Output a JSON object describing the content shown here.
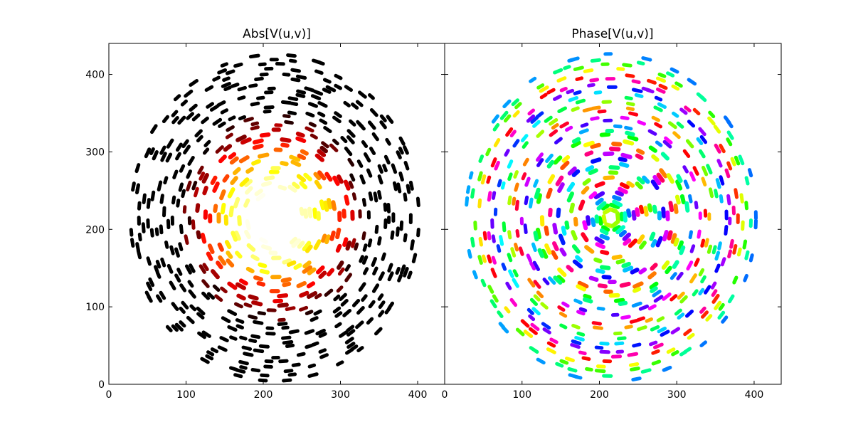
{
  "chart_data": [
    {
      "type": "heatmap",
      "title": "Abs[V(u,v)]",
      "xlabel": "",
      "ylabel": "",
      "xlim": [
        0,
        435
      ],
      "ylim": [
        0,
        440
      ],
      "xticks": [
        0,
        100,
        200,
        300,
        400
      ],
      "yticks": [
        0,
        100,
        200,
        300,
        400
      ],
      "xtick_labels": [
        "0",
        "100",
        "200",
        "300",
        "400"
      ],
      "ytick_labels": [
        "0",
        "100",
        "200",
        "300",
        "400"
      ],
      "colormap": "hot",
      "center": [
        215,
        215
      ],
      "description_ranges": {
        "outer_radius": 200
      },
      "grid": false
    },
    {
      "type": "heatmap",
      "title": "Phase[V(u,v)]",
      "xlabel": "",
      "ylabel": "",
      "xlim": [
        0,
        435
      ],
      "ylim": [
        0,
        440
      ],
      "xticks": [
        0,
        100,
        200,
        300,
        400
      ],
      "xtick_labels": [
        "0",
        "100",
        "200",
        "300",
        "400"
      ],
      "colormap": "hsv",
      "center": [
        215,
        215
      ],
      "grid": false
    }
  ],
  "colors": {
    "axes": "#000000",
    "background": "#ffffff"
  }
}
